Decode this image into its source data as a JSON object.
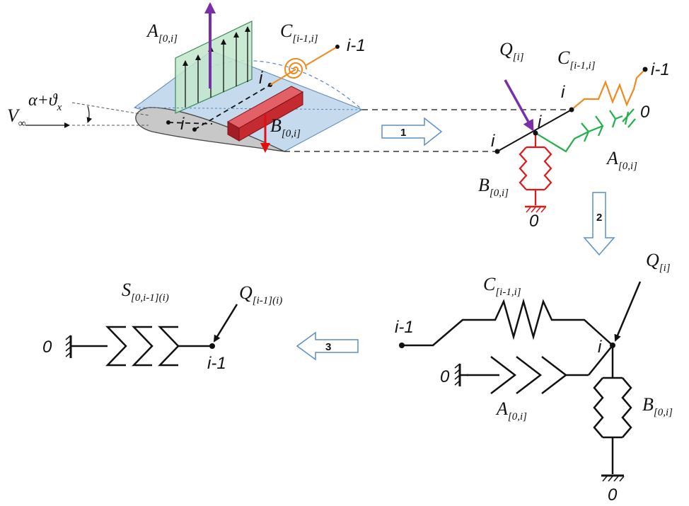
{
  "colors": {
    "ink": "#111111",
    "wing_fill": "#bcd3ea",
    "wing_edge": "#5a86b8",
    "airfoil_fill": "#c8c8c8",
    "aero_fill": "#c2e6cc",
    "aero_edge": "#3a8a55",
    "beam_fill": "#c42a30",
    "beam_top": "#e26066",
    "lift_arrow": "#7a2fa8",
    "weight_arrow": "#e01010",
    "torsion_spring": "#ef8a1e",
    "bending_spring": "#e01818",
    "aero_spring": "#22b04a",
    "step_arrow_fill": "#ffffff",
    "step_arrow_edge": "#5b8fc9"
  },
  "wing": {
    "freestream": {
      "main": "V",
      "sub": "∞"
    },
    "angle": {
      "main": "α+ϑ",
      "sub": "x"
    },
    "node_i": "i",
    "aero_label": {
      "main": "A",
      "sub": "[0,i]"
    },
    "torsion_label": {
      "main": "C",
      "sub": "[i-1,i]"
    },
    "weight_label": {
      "main": "B",
      "sub": "[0,i]"
    },
    "node_prev": "i-1"
  },
  "model": {
    "load": {
      "main": "Q",
      "sub": "[i]"
    },
    "spring_c": {
      "main": "C",
      "sub": "[i-1,i]"
    },
    "node_prev": "i-1",
    "node_i": "i",
    "ground": "0",
    "spring_a": {
      "main": "A",
      "sub": "[0,i]"
    },
    "spring_b": {
      "main": "B",
      "sub": "[0,i]"
    }
  },
  "parallel": {
    "spring_c": {
      "main": "C",
      "sub": "[i-1,i]"
    },
    "load": {
      "main": "Q",
      "sub": "[i]"
    },
    "node_prev": "i-1",
    "node_i": "i",
    "ground": "0",
    "spring_a": {
      "main": "A",
      "sub": "[0,i]"
    },
    "spring_b": {
      "main": "B",
      "sub": "[0,i]"
    }
  },
  "series": {
    "spring_s": {
      "main": "S",
      "sub": "[0,i-1](i)"
    },
    "load": {
      "main": "Q",
      "sub": "[i-1](i)"
    },
    "ground": "0",
    "node": "i-1"
  },
  "steps": [
    "1",
    "2",
    "3"
  ]
}
